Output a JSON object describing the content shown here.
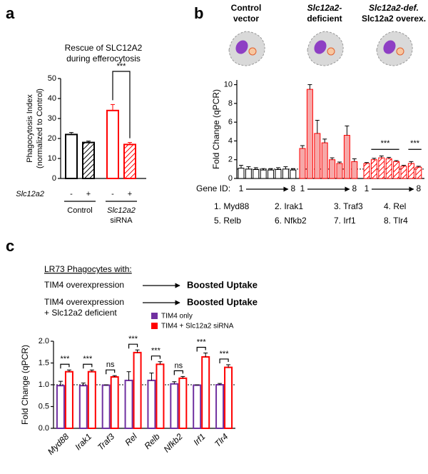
{
  "chart_data": [
    {
      "type": "bar",
      "panel": "a",
      "title": [
        "Rescue of SLC12A2",
        "during efferocytosis"
      ],
      "y_label": [
        "Phagocytosis Index",
        "(normalized to Control)"
      ],
      "row_label": "Slc12a2",
      "categories": [
        "-",
        "+",
        "-",
        "+"
      ],
      "groups": [
        [
          "Control"
        ],
        [
          "Slc12a2",
          "siRNA"
        ]
      ],
      "values": [
        22,
        18,
        34,
        17
      ],
      "errors": [
        1,
        0.7,
        3,
        1
      ],
      "colors": [
        "#000000",
        "#000000",
        "#ff0000",
        "#ff0000"
      ],
      "hatched": [
        false,
        true,
        false,
        true
      ],
      "ylim": [
        0,
        50
      ],
      "yticks": [
        0,
        10,
        20,
        30,
        40,
        50
      ],
      "annotations": [
        "***"
      ]
    },
    {
      "type": "bar",
      "panel": "b",
      "y_label": "Fold Change (qPCR)",
      "x_label": "Gene ID:",
      "series": [
        {
          "name": [
            "Control",
            "vector"
          ],
          "color": "#000000",
          "fill": "#ffffff",
          "hatched": false,
          "values": [
            1.1,
            1.0,
            0.95,
            0.9,
            0.9,
            0.95,
            1.0,
            0.9
          ],
          "errors": [
            0.3,
            0.25,
            0.2,
            0.15,
            0.15,
            0.2,
            0.25,
            0.15
          ],
          "tick_labels": [
            "1",
            "8"
          ]
        },
        {
          "name": [
            "Slc12a2-",
            "deficient"
          ],
          "color": "#ff0000",
          "fill": "#f6a8a8",
          "hatched": false,
          "values": [
            3.2,
            9.5,
            4.8,
            3.8,
            2.0,
            1.6,
            4.6,
            1.8
          ],
          "errors": [
            0.3,
            0.5,
            1.4,
            0.4,
            0.2,
            0.15,
            1.0,
            0.3
          ],
          "tick_labels": [
            "1",
            "8"
          ]
        },
        {
          "name": [
            "Slc12a2-def.",
            "Slc12a2 overex."
          ],
          "color": "#ff0000",
          "fill": "#ffffff",
          "hatched": true,
          "values": [
            1.6,
            2.0,
            2.2,
            2.1,
            1.8,
            1.3,
            1.6,
            1.2
          ],
          "errors": [
            0.1,
            0.15,
            0.2,
            0.15,
            0.1,
            0.1,
            0.2,
            0.1
          ],
          "tick_labels": [
            "1",
            "8"
          ]
        }
      ],
      "ylim": [
        0,
        10.5
      ],
      "yticks": [
        0,
        2,
        4,
        6,
        8,
        10
      ],
      "refline": 1,
      "annotations": [
        "***",
        "***"
      ],
      "gene_key": [
        "1. Myd88",
        "2. Irak1",
        "3. Traf3",
        "4. Rel",
        "5. Relb",
        "6. Nfkb2",
        "7. Irf1",
        "8. Tlr4"
      ]
    },
    {
      "type": "grouped-bar",
      "panel": "c",
      "intro": {
        "heading": "LR73 Phagocytes with:",
        "rows": [
          {
            "lines": [
              "TIM4 overexpression"
            ],
            "result": "Boosted Uptake",
            "color": "#7030a0"
          },
          {
            "lines": [
              "TIM4 overexpression",
              "+ Slc12a2 deficient"
            ],
            "result": "Boosted Uptake",
            "color": "#ff0000"
          }
        ]
      },
      "y_label": "Fold Change (qPCR)",
      "categories": [
        "Myd88",
        "Irak1",
        "Traf3",
        "Rel",
        "Relb",
        "Nfkb2",
        "Irf1",
        "Tlr4"
      ],
      "series": [
        {
          "name": "TIM4 only",
          "color": "#7030a0",
          "values": [
            0.98,
            0.98,
            0.99,
            1.1,
            1.1,
            1.02,
            0.99,
            1.0
          ],
          "errors": [
            0.1,
            0.06,
            0.01,
            0.2,
            0.17,
            0.05,
            0.01,
            0.03
          ]
        },
        {
          "name": "TIM4 + Slc12a2 siRNA",
          "color": "#ff0000",
          "values": [
            1.3,
            1.3,
            1.18,
            1.74,
            1.47,
            1.15,
            1.64,
            1.4
          ],
          "errors": [
            0.04,
            0.04,
            0.03,
            0.06,
            0.06,
            0.04,
            0.09,
            0.06
          ]
        }
      ],
      "significance": [
        "***",
        "***",
        "ns",
        "***",
        "***",
        "ns",
        "***",
        "***"
      ],
      "ylim": [
        0,
        2
      ],
      "yticks": [
        {
          "value": 0,
          "label": "0.0"
        },
        {
          "value": 0.5,
          "label": "0.5"
        },
        {
          "value": 1,
          "label": "1.0"
        },
        {
          "value": 1.5,
          "label": "1.5"
        },
        {
          "value": 2,
          "label": "2.0"
        }
      ],
      "refline": 1
    }
  ]
}
